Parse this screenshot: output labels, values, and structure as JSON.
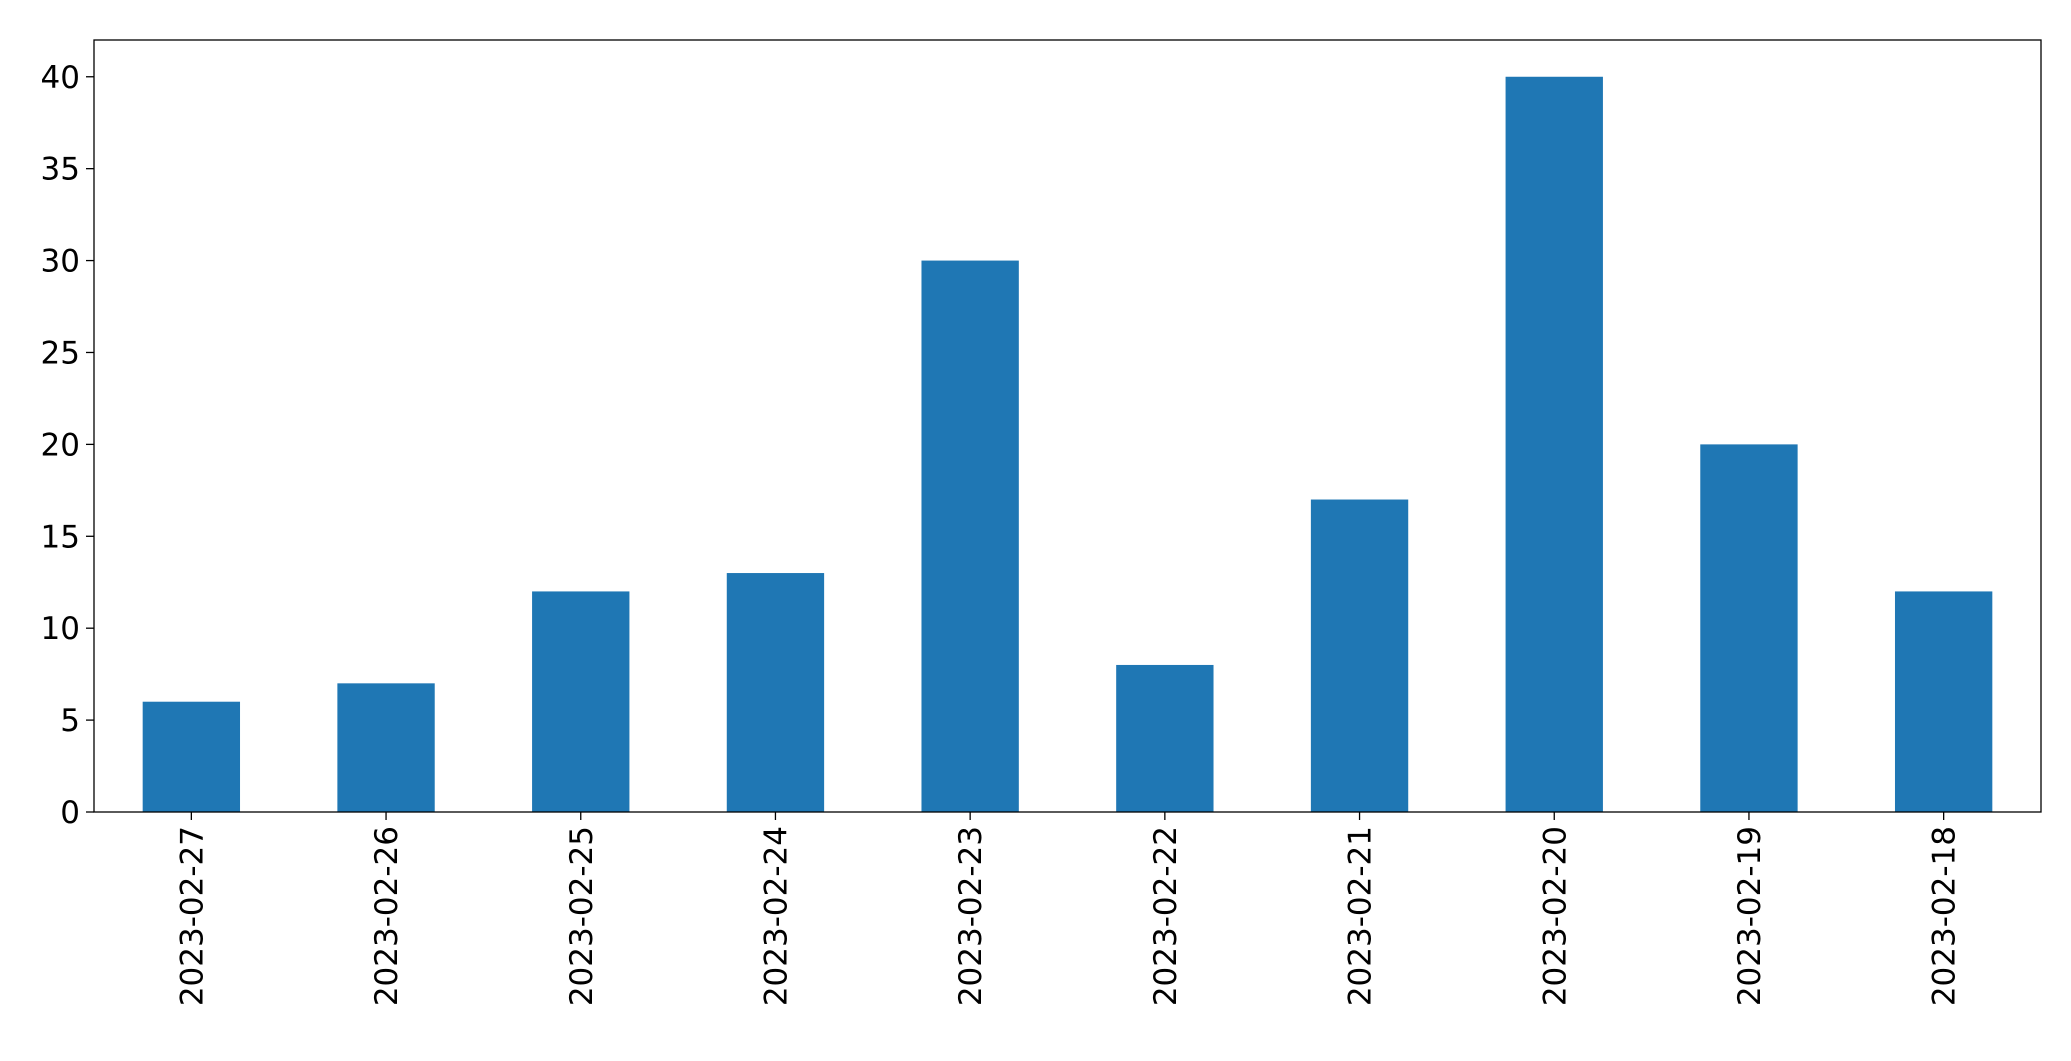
{
  "chart_data": {
    "type": "bar",
    "categories": [
      "2023-02-27",
      "2023-02-26",
      "2023-02-25",
      "2023-02-24",
      "2023-02-23",
      "2023-02-22",
      "2023-02-21",
      "2023-02-20",
      "2023-02-19",
      "2023-02-18"
    ],
    "values": [
      6,
      7,
      12,
      13,
      30,
      8,
      17,
      40,
      20,
      12
    ],
    "color": "#1f77b4",
    "ylim": [
      0,
      42
    ],
    "yticks": [
      0,
      5,
      10,
      15,
      20,
      25,
      30,
      35,
      40
    ],
    "grid": false
  }
}
